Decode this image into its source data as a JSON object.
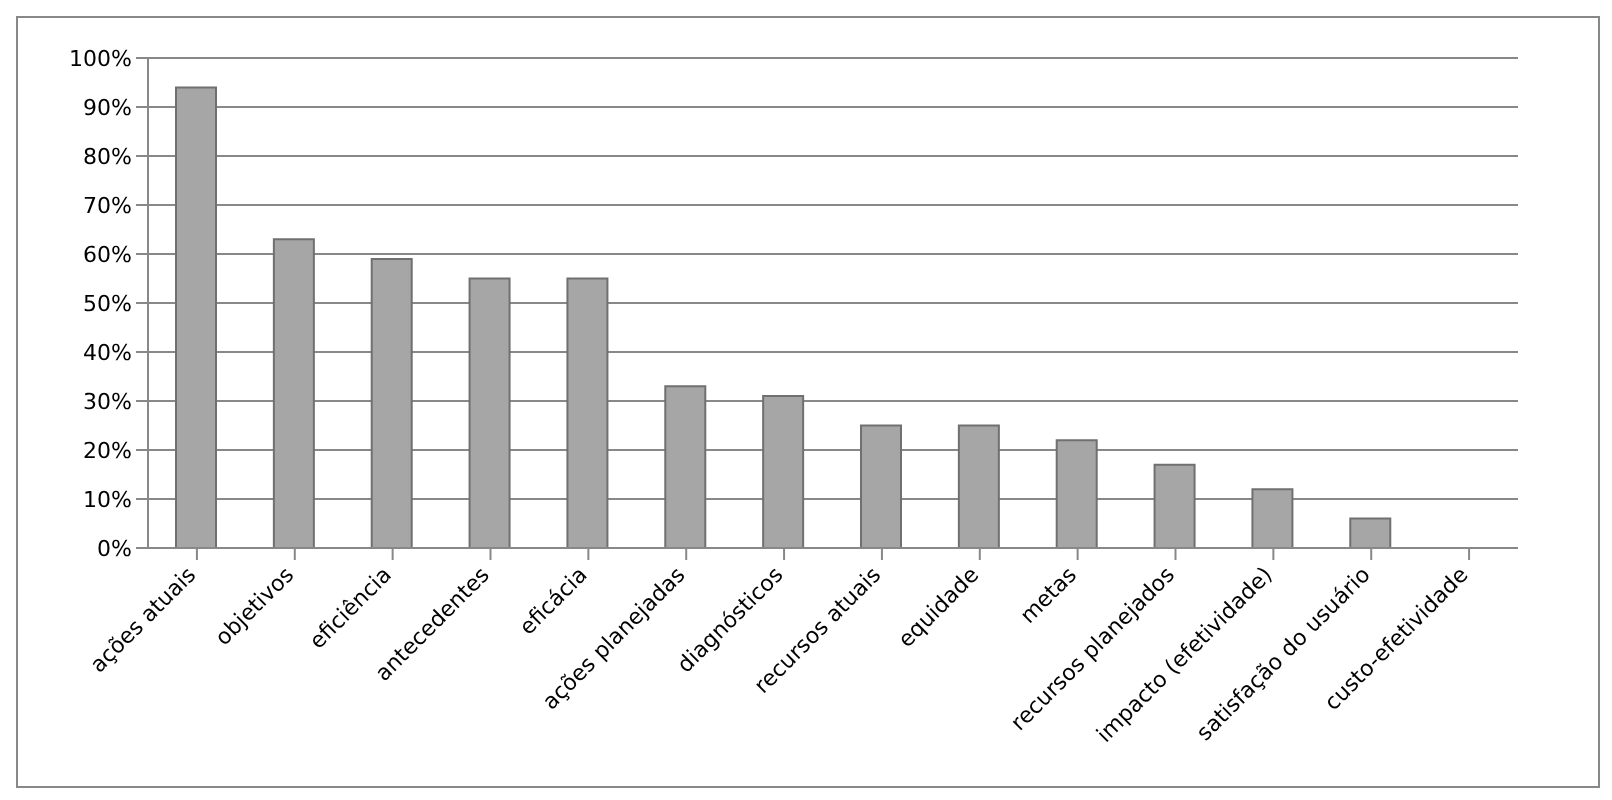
{
  "chart_data": {
    "type": "bar",
    "categories": [
      "ações atuais",
      "objetivos",
      "eficiência",
      "antecedentes",
      "eficácia",
      "ações planejadas",
      "diagnósticos",
      "recursos atuais",
      "equidade",
      "metas",
      "recursos planejados",
      "impacto (efetividade)",
      "satisfação do usuário",
      "custo-efetividade"
    ],
    "values": [
      94,
      63,
      59,
      55,
      55,
      33,
      31,
      25,
      25,
      22,
      17,
      12,
      6,
      0
    ],
    "color": "#a6a6a6",
    "ylim": [
      0,
      100
    ],
    "yticks": [
      {
        "value": 0,
        "label": "0%"
      },
      {
        "value": 10,
        "label": "10%"
      },
      {
        "value": 20,
        "label": "20%"
      },
      {
        "value": 30,
        "label": "30%"
      },
      {
        "value": 40,
        "label": "40%"
      },
      {
        "value": 50,
        "label": "50%"
      },
      {
        "value": 60,
        "label": "60%"
      },
      {
        "value": 70,
        "label": "70%"
      },
      {
        "value": 80,
        "label": "80%"
      },
      {
        "value": 90,
        "label": "90%"
      },
      {
        "value": 100,
        "label": "100%"
      }
    ],
    "grid": "y"
  }
}
